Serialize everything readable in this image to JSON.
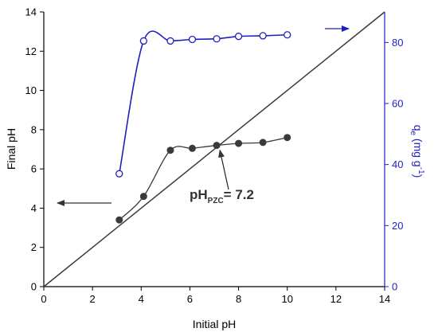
{
  "chart_data": {
    "type": "scatter",
    "xlabel": "Initial pH",
    "ylabel_left": "Final pH",
    "ylabel_right": {
      "main": "q",
      "sub": "e",
      "unit_open": " (mg g",
      "unit_sup": "-1",
      "unit_close": ")"
    },
    "xlim": [
      0,
      14
    ],
    "ylim_left": [
      0,
      14
    ],
    "ylim_right": [
      0,
      90
    ],
    "x_ticks": [
      "0",
      "2",
      "4",
      "6",
      "8",
      "10",
      "12",
      "14"
    ],
    "y_left_ticks": [
      "0",
      "2",
      "4",
      "6",
      "8",
      "10",
      "12",
      "14"
    ],
    "y_right_ticks": [
      "0",
      "20",
      "40",
      "60",
      "80"
    ],
    "grid": false,
    "series": [
      {
        "axis": "left",
        "marker": "filled-circle",
        "color": "#3a3a3a",
        "x": [
          3.1,
          4.1,
          5.2,
          6.1,
          7.1,
          8.0,
          9.0,
          10.0
        ],
        "y": [
          3.4,
          4.6,
          6.95,
          7.05,
          7.2,
          7.3,
          7.35,
          7.6
        ]
      },
      {
        "axis": "right",
        "marker": "open-circle",
        "color": "#1f1fbf",
        "x": [
          3.1,
          4.1,
          5.2,
          6.1,
          7.1,
          8.0,
          9.0,
          10.0
        ],
        "y": [
          37,
          80.5,
          80.5,
          81,
          81.2,
          82,
          82.2,
          82.5
        ]
      },
      {
        "axis": "left",
        "marker": "none",
        "color": "#3a3a3a",
        "x": [
          0,
          14
        ],
        "y": [
          0,
          14
        ]
      }
    ],
    "annotation": {
      "text": "pH",
      "sub": "PZC",
      "rest": "= 7.2",
      "x": 7.2,
      "y": 7.2
    },
    "colors": {
      "left_axis": "#000000",
      "right_axis": "#1f1fbf",
      "ref_line": "#3a3a3a"
    }
  }
}
